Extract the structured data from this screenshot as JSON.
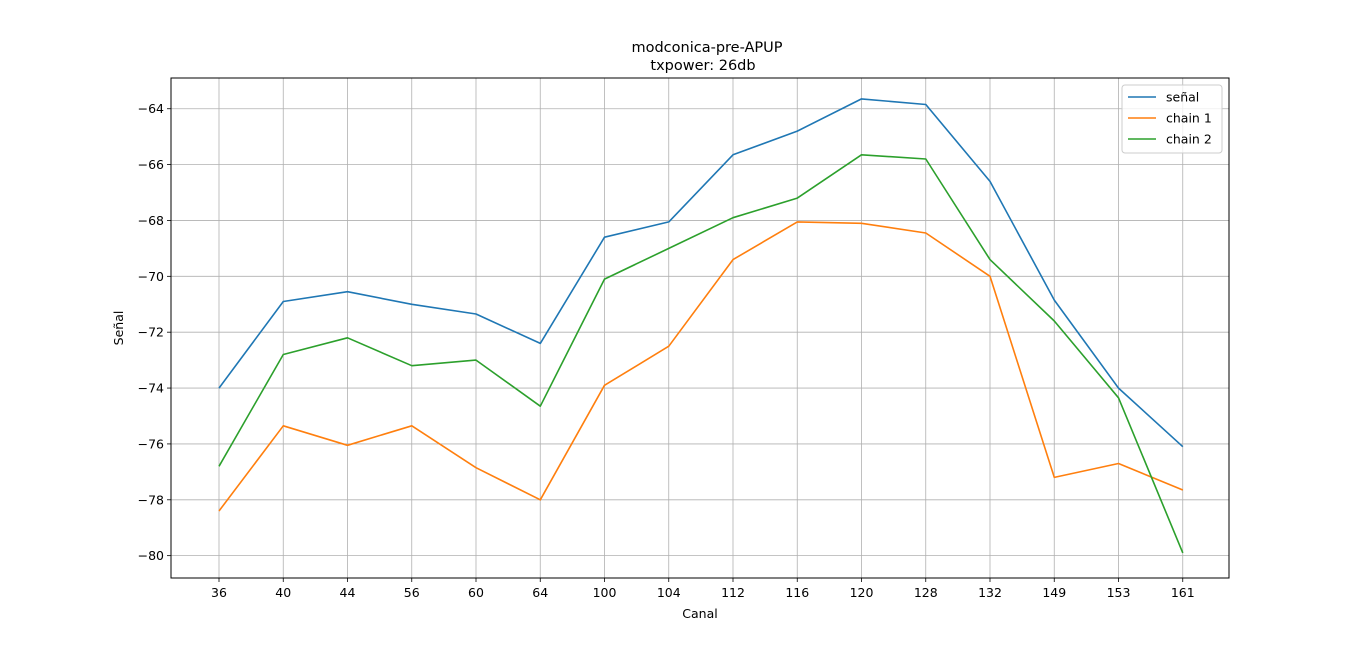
{
  "chart_data": {
    "type": "line",
    "title": "modconica-pre-APUP",
    "subtitle": "txpower: 26db",
    "xlabel": "Canal",
    "ylabel": "Señal",
    "categories": [
      "36",
      "40",
      "44",
      "56",
      "60",
      "64",
      "100",
      "104",
      "112",
      "116",
      "120",
      "128",
      "132",
      "149",
      "153",
      "161"
    ],
    "yticks": [
      "−64",
      "−66",
      "−68",
      "−70",
      "−72",
      "−74",
      "−76",
      "−78",
      "−80"
    ],
    "ylim": [
      -80.8,
      -62.9
    ],
    "grid": true,
    "legend_position": "top-right",
    "series": [
      {
        "name": "señal",
        "color": "#1f77b4",
        "values": [
          -74.0,
          -70.9,
          -70.55,
          -71.0,
          -71.35,
          -72.4,
          -68.6,
          -68.05,
          -65.65,
          -64.8,
          -63.65,
          -63.85,
          -66.6,
          -70.85,
          -74.0,
          -76.1
        ]
      },
      {
        "name": "chain 1",
        "color": "#ff7f0e",
        "values": [
          -78.4,
          -75.35,
          -76.05,
          -75.35,
          -76.85,
          -78.0,
          -73.9,
          -72.5,
          -69.4,
          -68.05,
          -68.1,
          -68.45,
          -70.0,
          -77.2,
          -76.7,
          -77.65
        ]
      },
      {
        "name": "chain 2",
        "color": "#2ca02c",
        "values": [
          -76.8,
          -72.8,
          -72.2,
          -73.2,
          -73.0,
          -74.65,
          -70.1,
          -69.0,
          -67.9,
          -67.2,
          -65.65,
          -65.8,
          -69.4,
          -71.6,
          -74.35,
          -79.9
        ]
      }
    ]
  }
}
